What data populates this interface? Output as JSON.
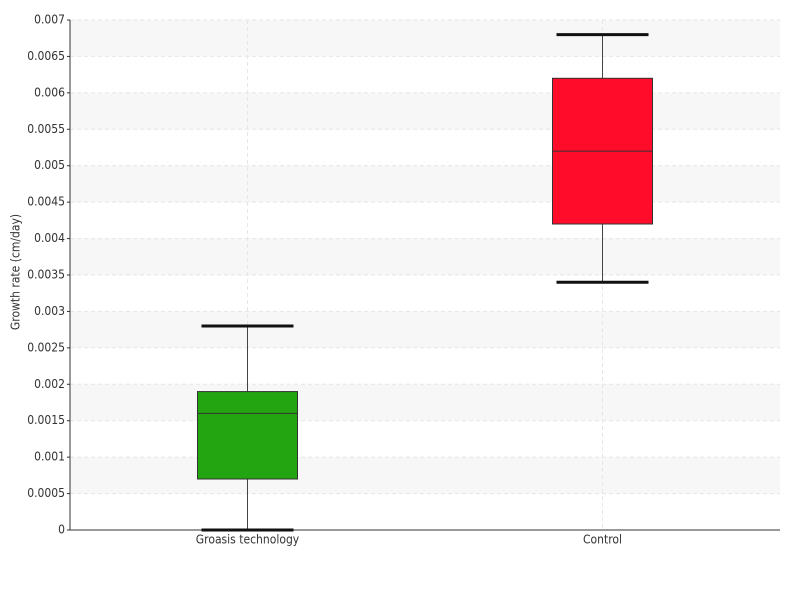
{
  "chart_data": {
    "type": "box",
    "y_label": "Growth rate (cm/day)",
    "categories": [
      "Groasis technology",
      "Control"
    ],
    "boxes": [
      {
        "color": "#22a511",
        "min": 0,
        "q1": 0.0007,
        "median": 0.0016,
        "q3": 0.0019,
        "max": 0.0028
      },
      {
        "color": "#ff0c2a",
        "min": 0.0034,
        "q1": 0.0042,
        "median": 0.0052,
        "q3": 0.0062,
        "max": 0.0068
      }
    ],
    "ylim": [
      0,
      0.007
    ],
    "yticks": [
      0,
      0.0005,
      0.001,
      0.0015,
      0.002,
      0.0025,
      0.003,
      0.0035,
      0.004,
      0.0045,
      0.005,
      0.0055,
      0.006,
      0.0065,
      0.007
    ],
    "grid": true
  }
}
